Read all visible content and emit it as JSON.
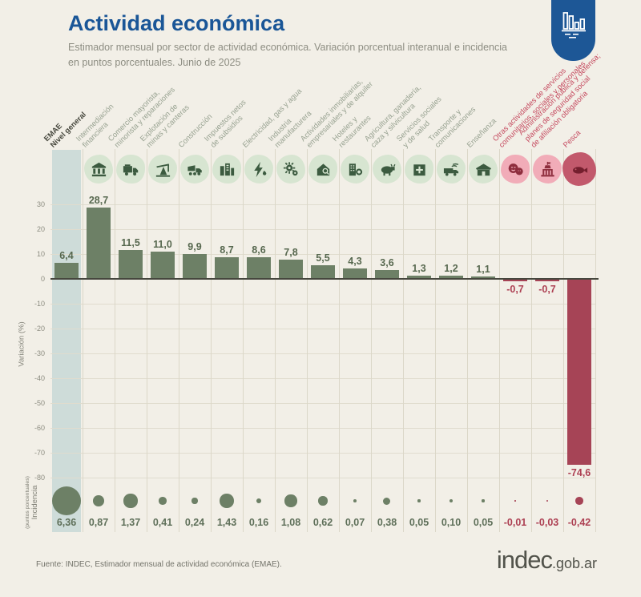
{
  "header": {
    "title": "Actividad económica",
    "subtitle_line1": "Estimador mensual por sector de actividad económica. Variación porcentual interanual e incidencia",
    "subtitle_line2": "en puntos porcentuales. Junio de 2025",
    "badge_icon": "bar-chart-icon"
  },
  "axis": {
    "incidencia_label": "Incidencia",
    "incidencia_sublabel": "(puntos porcentuales)"
  },
  "chart_data": {
    "type": "bar",
    "title": "Actividad económica",
    "xlabel": "",
    "ylabel": "Variación (%)",
    "ylabel_secondary": "Incidencia (puntos porcentuales)",
    "ylim": [
      -80,
      35
    ],
    "yticks": [
      30,
      20,
      10,
      0,
      -10,
      -20,
      -30,
      -40,
      -50,
      -60,
      -70,
      -80
    ],
    "grid": true,
    "categories": [
      "EMAE Nivel general",
      "Intermediación financiera",
      "Comercio mayorista, minorista y reparaciones",
      "Explotación de minas y canteras",
      "Construcción",
      "Impuestos netos de subsidios",
      "Electricidad, gas y agua",
      "Industria manufacturera",
      "Actividades inmobiliarias, empresariales y de alquiler",
      "Hoteles y restaurantes",
      "Agricultura, ganadería, caza y silvicultura",
      "Servicios sociales y de salud",
      "Transporte y comunicaciones",
      "Enseñanza",
      "Otras actividades de servicios comunitarios, sociales y personales",
      "Administración pública y defensa; planes de seguridad social de afiliación obligatoria",
      "Pesca"
    ],
    "series": [
      {
        "name": "Variación (%)",
        "values": [
          6.4,
          28.7,
          11.5,
          11.0,
          9.9,
          8.7,
          8.6,
          7.8,
          5.5,
          4.3,
          3.6,
          1.3,
          1.2,
          1.1,
          -0.7,
          -0.7,
          -74.6
        ]
      },
      {
        "name": "Incidencia (puntos porcentuales)",
        "values": [
          6.36,
          0.87,
          1.37,
          0.41,
          0.24,
          1.43,
          0.16,
          1.08,
          0.62,
          0.07,
          0.38,
          0.05,
          0.1,
          0.05,
          -0.01,
          -0.03,
          -0.42
        ]
      }
    ],
    "sectors": [
      {
        "label_lines": [
          "EMAE",
          "Nivel general"
        ],
        "icon": null,
        "tone": "dark",
        "highlight": true
      },
      {
        "label_lines": [
          "Intermediación",
          "financiera"
        ],
        "icon": "bank",
        "tone": "green"
      },
      {
        "label_lines": [
          "Comercio mayorista,",
          "minorista y reparaciones"
        ],
        "icon": "delivery-truck",
        "tone": "green"
      },
      {
        "label_lines": [
          "Explotación de",
          "minas y canteras"
        ],
        "icon": "oil-pumpjack",
        "tone": "green"
      },
      {
        "label_lines": [
          "Construcción"
        ],
        "icon": "dump-truck",
        "tone": "green"
      },
      {
        "label_lines": [
          "Impuestos netos",
          "de subsidios"
        ],
        "icon": "city-buildings",
        "tone": "green"
      },
      {
        "label_lines": [
          "Electricidad, gas y agua"
        ],
        "icon": "lightning-drop",
        "tone": "green"
      },
      {
        "label_lines": [
          "Industria",
          "manufacturera"
        ],
        "icon": "gears",
        "tone": "green"
      },
      {
        "label_lines": [
          "Actividades inmobiliarias,",
          "empresariales y de alquiler"
        ],
        "icon": "house-key",
        "tone": "green"
      },
      {
        "label_lines": [
          "Hoteles y",
          "restaurantes"
        ],
        "icon": "hotel-restaurant",
        "tone": "green"
      },
      {
        "label_lines": [
          "Agricultura, ganadería,",
          "caza y silvicultura"
        ],
        "icon": "cow",
        "tone": "green"
      },
      {
        "label_lines": [
          "Servicios sociales",
          "y de salud"
        ],
        "icon": "health-cross",
        "tone": "green"
      },
      {
        "label_lines": [
          "Transporte y",
          "comunicaciones"
        ],
        "icon": "truck-wifi",
        "tone": "green"
      },
      {
        "label_lines": [
          "Enseñanza"
        ],
        "icon": "school",
        "tone": "green"
      },
      {
        "label_lines": [
          "Otras actividades de servicios",
          "comunitarios, sociales y personales"
        ],
        "icon": "theater-masks",
        "tone": "red"
      },
      {
        "label_lines": [
          "Administración pública y defensa;",
          "planes de seguridad social",
          "de afiliación obligatoria"
        ],
        "icon": "government-building",
        "tone": "red"
      },
      {
        "label_lines": [
          "Pesca"
        ],
        "icon": "fish",
        "tone": "red",
        "badge": "pesca"
      }
    ],
    "legend_position": "none"
  },
  "footer": {
    "source": "Fuente: INDEC, Estimador mensual de actividad económica (EMAE).",
    "logo_main": "indec",
    "logo_suffix": ".gob.ar"
  },
  "colors": {
    "background": "#f2efe7",
    "title_blue": "#1a5697",
    "header_badge_blue": "#1d5796",
    "bar_green": "#6d8066",
    "bar_red": "#a64456",
    "highlight_band": "#cedcd9",
    "icon_green_bg": "#d7e5d1",
    "icon_green_fg": "#3c5b40",
    "icon_red_bg": "#f1acb8",
    "icon_red_fg": "#8e2d3d",
    "icon_pesca_bg": "#c2596c",
    "icon_pesca_fg": "#741f2e"
  }
}
